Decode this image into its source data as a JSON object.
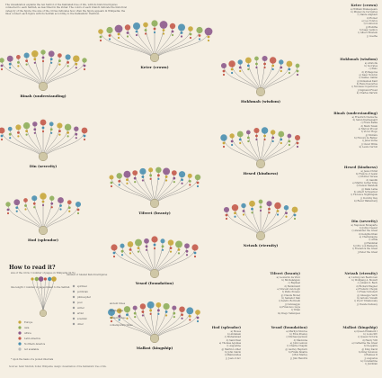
{
  "intro": "The visualization explains the ten Sefirot of the Kabbalah tree of life, with its historical figures connected to each Sefirah, as described in the Zohar. The colors of each branch indicate the historical category of the figure; the size of the circles indicates how often the figure appears in Wikipedia; the lines connect each figure with its Sefirah according to the Kabbalistic tradition.",
  "legend": {
    "title": "How to read it?",
    "circle_note": "size of the circle = number of pages on Wikipedia (in %)",
    "line_note": "line length = number of pages linked to the Sefirah",
    "count_note": "number of related historical figures",
    "categories": [
      "Europe",
      "Asia",
      "Africa",
      "Latin America",
      "Northern America",
      "not available"
    ],
    "cat_colors": [
      "#c8a63a",
      "#8fae5a",
      "#8d5a8c",
      "#c45a4a",
      "#4a8fb0",
      "#bbbbbb"
    ],
    "roles": [
      "spiritual",
      "politician",
      "philosopher",
      "poet",
      "writer",
      "artist",
      "scientist",
      "other"
    ],
    "ages": [
      "ancient times",
      "middle ages",
      "modern times",
      "contemporary times"
    ],
    "footnote": "* upon the basis of a pooled intervals"
  },
  "sources": "Sources: Sefer Yetzirah, Zohar, Wikipedia; design: visualization of the Kabbalistic tree of life.",
  "sefirot": [
    {
      "name": "Keter (crown)"
    },
    {
      "name": "Binah (understanding)"
    },
    {
      "name": "Hokhmah (wisdom)"
    },
    {
      "name": "Din (severity)"
    },
    {
      "name": "Hesed (kindness)"
    },
    {
      "name": "Tiferet (beauty)"
    },
    {
      "name": "Hod (splendor)"
    },
    {
      "name": "Netzah (eternity)"
    },
    {
      "name": "Yesod (foundation)"
    },
    {
      "name": "Malkut (kingship)"
    }
  ],
  "lists": {
    "keter": {
      "title": "Keter (crown)",
      "items": [
        "a) William Shakespeare",
        "b) Miguel de Cervantes",
        "c) Dante Alighieri",
        "d) Homer",
        "e) Leo Tolstoy",
        "f) Confucius",
        "g) Buddha",
        "h) Isaac Asimov",
        "i) Albert Einstein",
        "j) Goethe"
      ]
    },
    "hokhmah": {
      "title": "Hokhmah (wisdom)",
      "items": [
        "a) Aristotle",
        "b) Socrates",
        "c) Plato",
        "d) Pythagoras",
        "e) Isaac Newton",
        "f) Galileo Galilei",
        "g) Immanuel Kant",
        "h) René Descartes",
        "i) Nicolaus Copernicus",
        "j) Sigmund Freud",
        "k) Charles Darwin"
      ]
    },
    "binah": {
      "title": "Binah (understanding)",
      "items": [
        "a) Friedrich Nietzsche",
        "b) Søren Kierkegaard",
        "c) Franz Kafka",
        "d) Mark Twain",
        "e) Marcel Proust",
        "f) Victor Hugo",
        "g) Molière",
        "h) Honoré de Balzac",
        "i) Jules Verne",
        "j) Oscar Wilde",
        "k) Lewis Carroll"
      ]
    },
    "hesed": {
      "title": "Hesed (kindness)",
      "items": [
        "a) Jesus Christ",
        "b) Francis of Assisi",
        "c) Mother Teresa",
        "d) Gandhi",
        "e) Martin Luther King",
        "f) Nelson Mandela",
        "g) Dalai Lama",
        "h) Albert Schweitzer",
        "i) Florence Nightingale",
        "j) Dorothy Day",
        "k) Raoul Wallenberg"
      ]
    },
    "din": {
      "title": "Din (severity)",
      "items": [
        "a) Napoleon Bonaparte",
        "b) Julius Caesar",
        "c) Alexander the Great",
        "d) Genghis Khan",
        "e) Charlemagne",
        "f) Attila",
        "g) Hannibal",
        "h) Otto von Bismarck",
        "i) Frederick the Great",
        "j) Peter the Great"
      ]
    },
    "netzah": {
      "title": "Netzah (eternity)",
      "items": [
        "a) Ludwig van Beethoven",
        "b) Wolfgang A. Mozart",
        "c) Johann S. Bach",
        "d) Richard Wagner",
        "e) Frédéric Chopin",
        "f) Franz Schubert",
        "g) Giuseppe Verdi",
        "h) Antonio Vivaldi",
        "i) Pyotr Tchaikovsky",
        "j) Claude Debussy"
      ]
    },
    "tiferet": {
      "title": "Tiferet (beauty)",
      "items": [
        "a) Leonardo da Vinci",
        "b) Michelangelo",
        "c) Raphael",
        "d) Rembrandt",
        "e) Vincent van Gogh",
        "f) Pablo Picasso",
        "g) Claude Monet",
        "h) Salvador Dalí",
        "i) Sandro Botticelli",
        "j) Caravaggio",
        "k) Francisco Goya",
        "l) Titian",
        "m) Diego Velázquez"
      ]
    },
    "hod": {
      "title": "Hod (splendor)",
      "items": [
        "a) Moses",
        "b) Abraham",
        "c) Muhammad",
        "d) Saint Paul",
        "e) Thomas Aquinas",
        "f) Augustine",
        "g) Martin Luther",
        "h) John Calvin",
        "i) Maimonides",
        "j) Joan of Arc"
      ]
    },
    "yesod": {
      "title": "Yesod (foundation)",
      "items": [
        "a) Marilyn Monroe",
        "b) Elvis Presley",
        "c) Michael Jackson",
        "d) Madonna",
        "e) John Lennon",
        "f) Charlie Chaplin",
        "g) Audrey Hepburn",
        "h) Frank Sinatra",
        "i) Bob Marley",
        "j) Jimi Hendrix"
      ]
    },
    "malkut": {
      "title": "Malkut (kingship)",
      "items": [
        "a) Queen Elizabeth I",
        "b) Louis XIV",
        "c) Queen Victoria",
        "d) Henry VIII",
        "e) Catherine the Great",
        "f) Cleopatra",
        "g) King David",
        "h) King Solomon",
        "i) Ramses II",
        "j) Augustus",
        "k) Constantine",
        "l) Justinian"
      ]
    }
  }
}
